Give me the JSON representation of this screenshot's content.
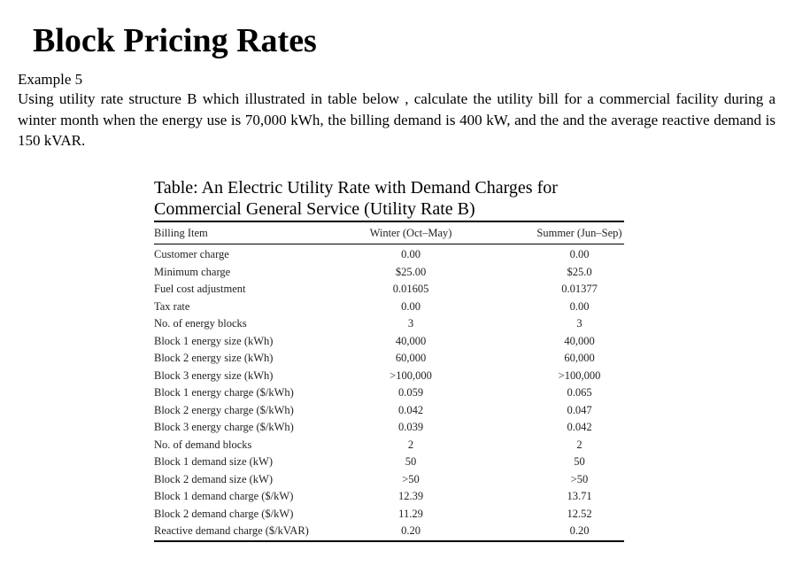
{
  "title": "Block Pricing Rates",
  "example_label": "Example 5",
  "problem_text": "Using utility rate structure B which illustrated in table below , calculate the utility bill for a commercial facility during a winter month when the energy use is 70,000 kWh, the billing demand is 400 kW, and the and the average reactive demand is 150 kVAR.",
  "table": {
    "caption_line1": "Table:  An Electric Utility Rate with Demand Charges for",
    "caption_line2": "Commercial General Service (Utility Rate B)",
    "headers": [
      "Billing Item",
      "Winter (Oct–May)",
      "Summer (Jun–Sep)"
    ],
    "rows": [
      [
        "Customer charge",
        "0.00",
        "0.00"
      ],
      [
        "Minimum charge",
        "$25.00",
        "$25.0"
      ],
      [
        "Fuel cost adjustment",
        "0.01605",
        "0.01377"
      ],
      [
        "Tax rate",
        "0.00",
        "0.00"
      ],
      [
        "No. of energy blocks",
        "3",
        "3"
      ],
      [
        "Block 1 energy size (kWh)",
        "40,000",
        "40,000"
      ],
      [
        "Block 2 energy size (kWh)",
        "60,000",
        "60,000"
      ],
      [
        "Block 3 energy size (kWh)",
        ">100,000",
        ">100,000"
      ],
      [
        "Block 1 energy charge ($/kWh)",
        "0.059",
        "0.065"
      ],
      [
        "Block 2 energy charge ($/kWh)",
        "0.042",
        "0.047"
      ],
      [
        "Block 3 energy charge ($/kWh)",
        "0.039",
        "0.042"
      ],
      [
        "No. of demand blocks",
        "2",
        "2"
      ],
      [
        "Block 1 demand size (kW)",
        "50",
        "50"
      ],
      [
        "Block 2 demand size (kW)",
        ">50",
        ">50"
      ],
      [
        "Block 1 demand charge ($/kW)",
        "12.39",
        "13.71"
      ],
      [
        "Block 2 demand charge ($/kW)",
        "11.29",
        "12.52"
      ],
      [
        "Reactive demand charge ($/kVAR)",
        "0.20",
        "0.20"
      ]
    ]
  }
}
